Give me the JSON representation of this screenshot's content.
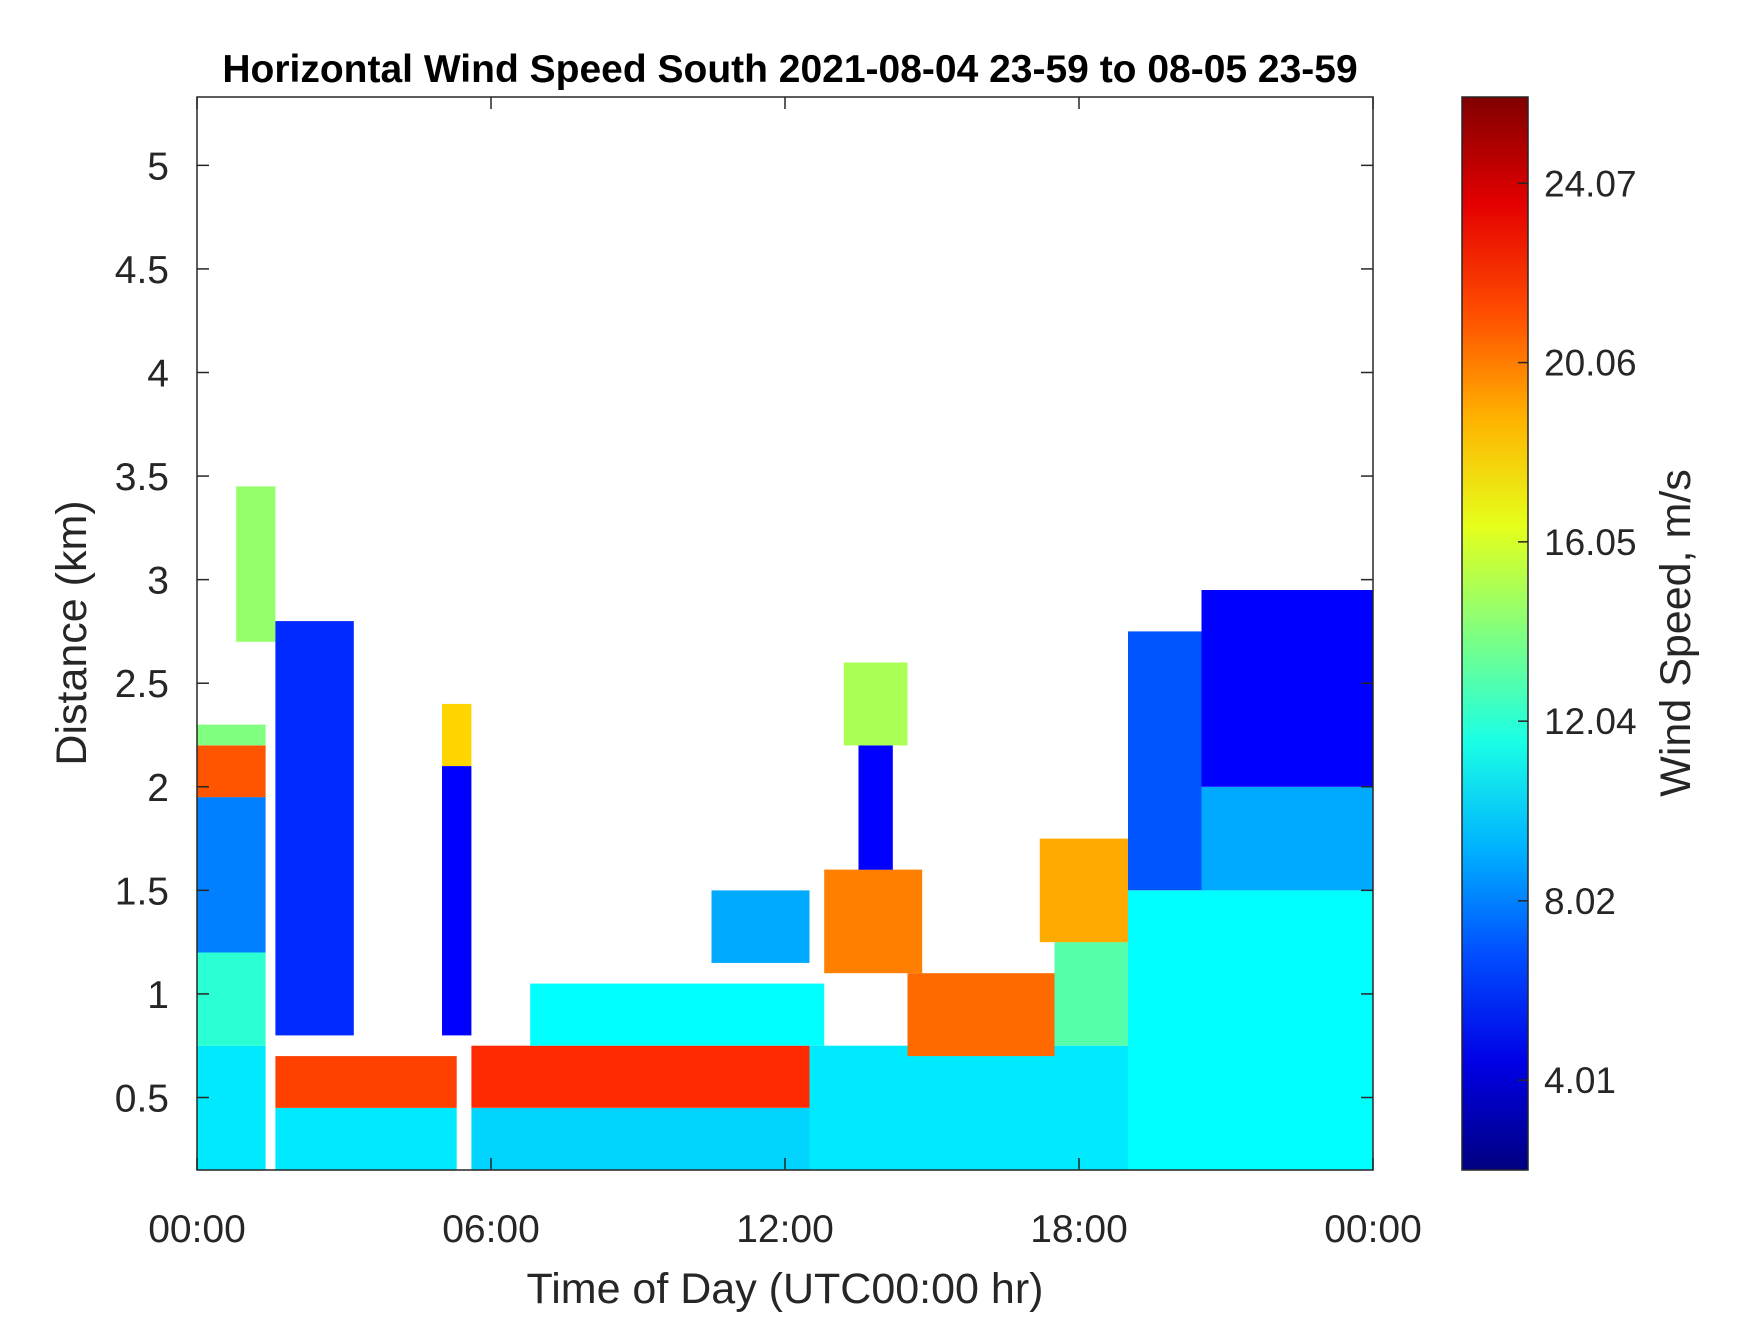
{
  "chart_data": {
    "type": "heatmap",
    "title": "Horizontal Wind Speed South 2021-08-04 23-59 to 08-05 23-59",
    "xlabel": "Time of Day (UTC00:00 hr)",
    "ylabel": "Distance (km)",
    "colorbar_label": "Wind Speed, m/s",
    "x_ticks": [
      "00:00",
      "06:00",
      "12:00",
      "18:00",
      "00:00"
    ],
    "x_tick_hours": [
      0,
      6,
      12,
      18,
      24
    ],
    "xlim_hours": [
      0,
      24
    ],
    "y_ticks": [
      "0.5",
      "1",
      "1.5",
      "2",
      "2.5",
      "3",
      "3.5",
      "4",
      "4.5",
      "5"
    ],
    "y_tick_values": [
      0.5,
      1,
      1.5,
      2,
      2.5,
      3,
      3.5,
      4,
      4.5,
      5
    ],
    "ylim_km": [
      0.15,
      5.33
    ],
    "colorbar_ticks": [
      "4.01",
      "8.02",
      "12.04",
      "16.05",
      "20.06",
      "24.07"
    ],
    "colorbar_tick_values": [
      4.01,
      8.02,
      12.04,
      16.05,
      20.06,
      24.07
    ],
    "colorbar_range": [
      2.0,
      26.0
    ],
    "colormap": "jet",
    "grid": false,
    "regions": [
      {
        "t0": 0.0,
        "t1": 1.4,
        "h0": 0.15,
        "h1": 0.75,
        "speed": 10.5
      },
      {
        "t0": 0.0,
        "t1": 1.4,
        "h0": 0.75,
        "h1": 1.2,
        "speed": 12.0
      },
      {
        "t0": 0.0,
        "t1": 1.4,
        "h0": 1.2,
        "h1": 1.95,
        "speed": 8.0
      },
      {
        "t0": 0.0,
        "t1": 1.4,
        "h0": 1.95,
        "h1": 2.2,
        "speed": 21.0
      },
      {
        "t0": 0.0,
        "t1": 1.4,
        "h0": 2.2,
        "h1": 2.3,
        "speed": 14.0
      },
      {
        "t0": 0.8,
        "t1": 1.6,
        "h0": 2.7,
        "h1": 3.45,
        "speed": 14.5
      },
      {
        "t0": 1.6,
        "t1": 3.2,
        "h0": 0.8,
        "h1": 2.8,
        "speed": 6.0
      },
      {
        "t0": 1.6,
        "t1": 5.3,
        "h0": 0.15,
        "h1": 0.45,
        "speed": 10.5
      },
      {
        "t0": 1.6,
        "t1": 5.3,
        "h0": 0.45,
        "h1": 0.7,
        "speed": 21.5
      },
      {
        "t0": 5.0,
        "t1": 5.6,
        "h0": 0.8,
        "h1": 2.1,
        "speed": 5.0
      },
      {
        "t0": 5.0,
        "t1": 5.6,
        "h0": 2.1,
        "h1": 2.4,
        "speed": 18.0
      },
      {
        "t0": 5.6,
        "t1": 12.5,
        "h0": 0.15,
        "h1": 0.45,
        "speed": 10.0
      },
      {
        "t0": 5.6,
        "t1": 12.5,
        "h0": 0.45,
        "h1": 0.75,
        "speed": 22.0
      },
      {
        "t0": 6.8,
        "t1": 12.8,
        "h0": 0.75,
        "h1": 1.05,
        "speed": 11.0
      },
      {
        "t0": 10.5,
        "t1": 12.5,
        "h0": 1.15,
        "h1": 1.5,
        "speed": 9.0
      },
      {
        "t0": 12.8,
        "t1": 14.8,
        "h0": 1.1,
        "h1": 1.6,
        "speed": 20.0
      },
      {
        "t0": 13.5,
        "t1": 14.2,
        "h0": 1.6,
        "h1": 2.2,
        "speed": 5.0
      },
      {
        "t0": 13.2,
        "t1": 14.5,
        "h0": 2.2,
        "h1": 2.6,
        "speed": 15.0
      },
      {
        "t0": 12.5,
        "t1": 19.0,
        "h0": 0.15,
        "h1": 0.75,
        "speed": 10.5
      },
      {
        "t0": 14.5,
        "t1": 17.5,
        "h0": 0.7,
        "h1": 1.1,
        "speed": 20.5
      },
      {
        "t0": 17.5,
        "t1": 19.0,
        "h0": 0.75,
        "h1": 1.25,
        "speed": 13.0
      },
      {
        "t0": 17.2,
        "t1": 19.0,
        "h0": 1.25,
        "h1": 1.75,
        "speed": 19.0
      },
      {
        "t0": 19.0,
        "t1": 24.0,
        "h0": 0.15,
        "h1": 1.5,
        "speed": 11.0
      },
      {
        "t0": 19.0,
        "t1": 20.5,
        "h0": 1.5,
        "h1": 2.75,
        "speed": 7.0
      },
      {
        "t0": 20.5,
        "t1": 24.0,
        "h0": 1.5,
        "h1": 2.0,
        "speed": 9.0
      },
      {
        "t0": 20.5,
        "t1": 24.0,
        "h0": 2.0,
        "h1": 2.95,
        "speed": 5.0
      }
    ]
  }
}
